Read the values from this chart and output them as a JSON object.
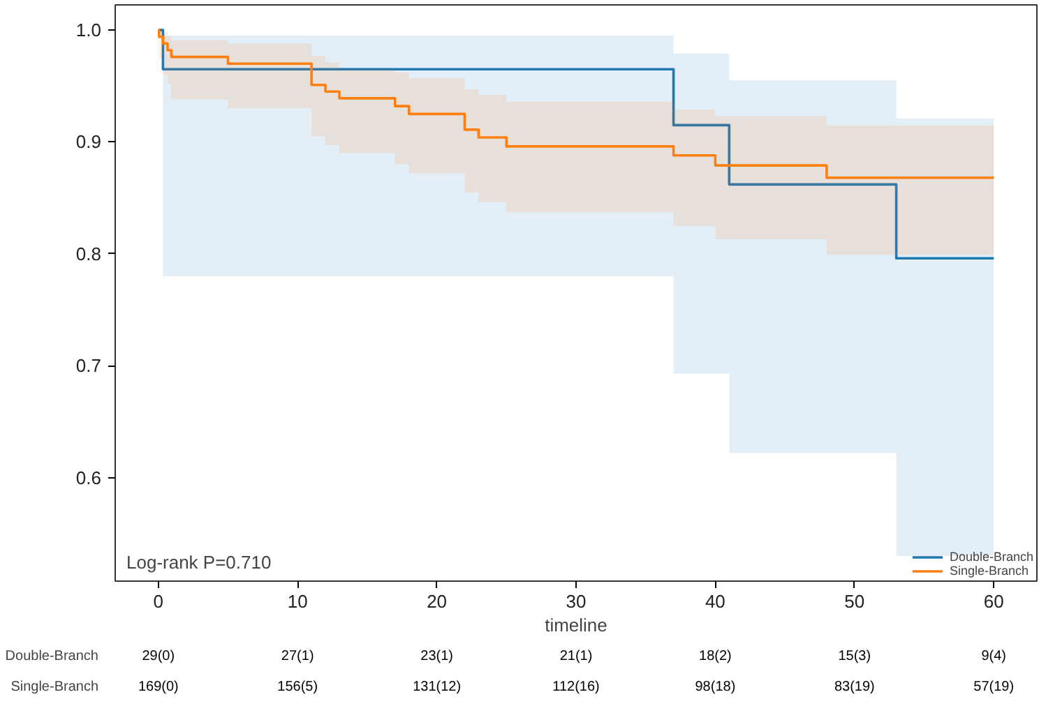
{
  "chart_data": {
    "type": "step",
    "xlabel": "timeline",
    "xlim": [
      -3.1,
      63.1
    ],
    "ylim": [
      0.5075,
      1.0225
    ],
    "xticks": [
      0,
      10,
      20,
      30,
      40,
      50,
      60
    ],
    "yticks": [
      0.6,
      0.7,
      0.8,
      0.9,
      {
        "value": 1.0,
        "label": "1.0"
      }
    ],
    "grid": false,
    "legend": "bottom right",
    "marker": "none",
    "line_style": "solid",
    "series": [
      {
        "name": "Double-Branch",
        "color": "#1f77b4",
        "x": [
          0,
          0.33,
          37,
          41,
          53,
          60
        ],
        "values": [
          1.0,
          0.965,
          0.915,
          0.862,
          0.796,
          0.796
        ],
        "upper": [
          1.0,
          0.995,
          0.979,
          0.955,
          0.921,
          0.921
        ],
        "lower": [
          1.0,
          0.78,
          0.693,
          0.622,
          0.53,
          0.53
        ]
      },
      {
        "name": "Single-Branch",
        "color": "#ff7f0e",
        "x": [
          0,
          0.05,
          0.33,
          0.66,
          0.93,
          5.0,
          11.0,
          12.0,
          13.0,
          17.0,
          18.0,
          22.0,
          23.0,
          25.0,
          37.0,
          40.0,
          48.0,
          60
        ],
        "values": [
          1.0,
          0.994,
          0.988,
          0.982,
          0.976,
          0.97,
          0.951,
          0.945,
          0.939,
          0.932,
          0.925,
          0.911,
          0.904,
          0.896,
          0.888,
          0.879,
          0.868,
          0.868
        ],
        "upper": [
          1.0,
          1.0,
          0.998,
          0.995,
          0.991,
          0.988,
          0.977,
          0.971,
          0.965,
          0.962,
          0.957,
          0.947,
          0.942,
          0.936,
          0.929,
          0.923,
          0.915,
          0.915
        ],
        "lower": [
          1.0,
          0.975,
          0.96,
          0.952,
          0.938,
          0.93,
          0.905,
          0.897,
          0.89,
          0.88,
          0.872,
          0.855,
          0.846,
          0.837,
          0.825,
          0.813,
          0.799,
          0.799
        ]
      }
    ],
    "annotations": [
      "Log-rank P=0.710",
      "Double-Branch",
      "29(0)",
      "27(1)",
      "23(1)",
      "21(1)",
      "18(2)",
      "15(3)",
      "9(4)",
      "Single-Branch",
      "169(0)",
      "156(5)",
      "131(12)",
      "112(16)",
      "98(18)",
      "83(19)",
      "57(19)"
    ]
  }
}
